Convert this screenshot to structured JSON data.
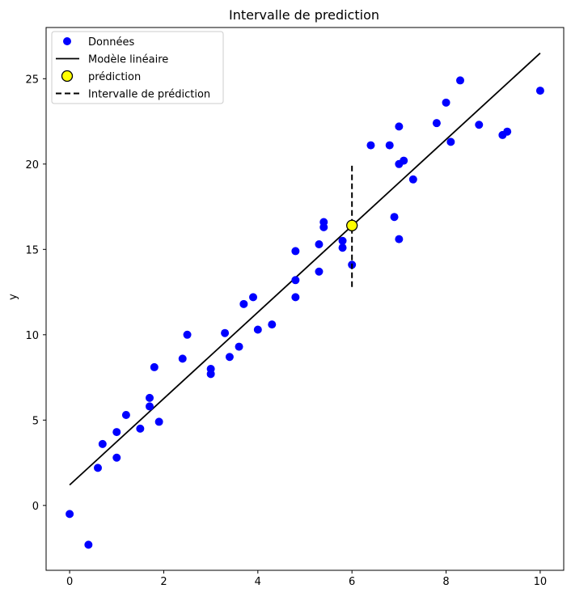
{
  "chart_data": {
    "type": "scatter",
    "title": "Intervalle de prediction",
    "xlabel": "",
    "ylabel": "y",
    "xlim": [
      -0.5,
      10.5
    ],
    "ylim": [
      -3.8,
      28.0
    ],
    "xticks": [
      0,
      2,
      4,
      6,
      8,
      10
    ],
    "yticks": [
      0,
      5,
      10,
      15,
      20,
      25
    ],
    "grid": false,
    "legend_position": "upper-left",
    "series": [
      {
        "name": "Données",
        "kind": "scatter",
        "color": "#0000ff",
        "points": [
          [
            0.0,
            -0.5
          ],
          [
            0.4,
            -2.3
          ],
          [
            0.6,
            2.2
          ],
          [
            0.7,
            3.6
          ],
          [
            1.0,
            4.3
          ],
          [
            1.0,
            2.8
          ],
          [
            1.2,
            5.3
          ],
          [
            1.5,
            4.5
          ],
          [
            1.7,
            6.3
          ],
          [
            1.7,
            5.8
          ],
          [
            1.8,
            8.1
          ],
          [
            1.9,
            4.9
          ],
          [
            2.4,
            8.6
          ],
          [
            2.5,
            10.0
          ],
          [
            3.0,
            8.0
          ],
          [
            3.0,
            7.7
          ],
          [
            3.3,
            10.1
          ],
          [
            3.4,
            8.7
          ],
          [
            3.6,
            9.3
          ],
          [
            3.7,
            11.8
          ],
          [
            3.9,
            12.2
          ],
          [
            4.0,
            10.3
          ],
          [
            4.3,
            10.6
          ],
          [
            4.8,
            13.2
          ],
          [
            4.8,
            14.9
          ],
          [
            4.8,
            12.2
          ],
          [
            5.3,
            13.7
          ],
          [
            5.3,
            15.3
          ],
          [
            5.4,
            16.6
          ],
          [
            5.4,
            16.3
          ],
          [
            5.8,
            15.5
          ],
          [
            5.8,
            15.1
          ],
          [
            6.0,
            14.1
          ],
          [
            6.4,
            21.1
          ],
          [
            6.8,
            21.1
          ],
          [
            6.9,
            16.9
          ],
          [
            7.0,
            22.2
          ],
          [
            7.0,
            20.0
          ],
          [
            7.0,
            15.6
          ],
          [
            7.1,
            20.2
          ],
          [
            7.3,
            19.1
          ],
          [
            7.8,
            22.4
          ],
          [
            8.0,
            23.6
          ],
          [
            8.1,
            21.3
          ],
          [
            8.3,
            24.9
          ],
          [
            8.7,
            22.3
          ],
          [
            9.2,
            21.7
          ],
          [
            9.3,
            21.9
          ],
          [
            10.0,
            24.3
          ]
        ]
      },
      {
        "name": "Modèle linéaire",
        "kind": "line",
        "color": "#000000",
        "x": [
          0,
          10
        ],
        "y": [
          1.2,
          26.5
        ]
      },
      {
        "name": "prédiction",
        "kind": "point",
        "color": "#ffff00",
        "edge_color": "#000000",
        "x": 6.0,
        "y": 16.4
      },
      {
        "name": "Intervalle de prédiction",
        "kind": "dashed-line",
        "color": "#000000",
        "x": [
          6.0,
          6.0
        ],
        "y": [
          12.8,
          19.9
        ]
      }
    ]
  }
}
